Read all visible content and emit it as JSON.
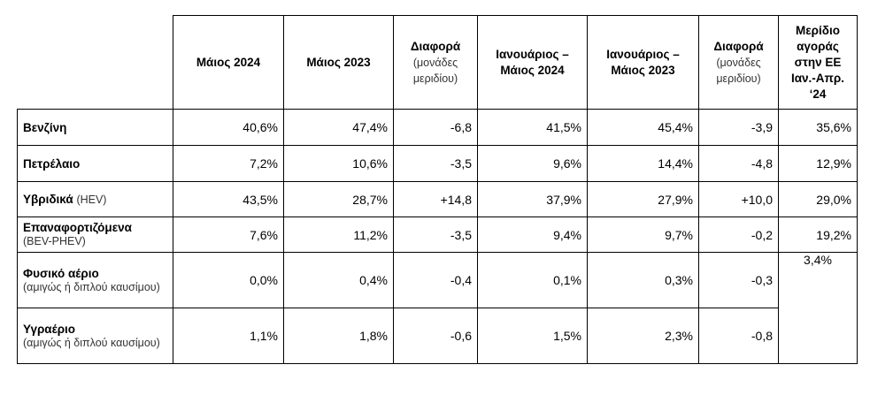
{
  "columns": [
    {
      "label": "Μάιος 2024",
      "sub": ""
    },
    {
      "label": "Μάιος 2023",
      "sub": ""
    },
    {
      "label": "Διαφορά",
      "sub": "(μονάδες μεριδίου)"
    },
    {
      "label": "Ιανουάριος – Μάιος 2024",
      "sub": ""
    },
    {
      "label": "Ιανουάριος – Μάιος 2023",
      "sub": ""
    },
    {
      "label": "Διαφορά",
      "sub": "(μονάδες μεριδίου)"
    },
    {
      "label": "Μερίδιο αγοράς στην ΕΕ Ιαν.-Απρ. ‘24",
      "sub": ""
    }
  ],
  "rows": [
    {
      "label": "Βενζίνη",
      "note": "",
      "values": [
        "40,6%",
        "47,4%",
        "-6,8",
        "41,5%",
        "45,4%",
        "-3,9",
        "35,6%"
      ]
    },
    {
      "label": "Πετρέλαιο",
      "note": "",
      "values": [
        "7,2%",
        "10,6%",
        "-3,5",
        "9,6%",
        "14,4%",
        "-4,8",
        "12,9%"
      ]
    },
    {
      "label": "Υβριδικά",
      "note": "(HEV)",
      "values": [
        "43,5%",
        "28,7%",
        "+14,8",
        "37,9%",
        "27,9%",
        "+10,0",
        "29,0%"
      ]
    },
    {
      "label": "Επαναφορτιζόμενα",
      "note": "(BEV-PHEV)",
      "values": [
        "7,6%",
        "11,2%",
        "-3,5",
        "9,4%",
        "9,7%",
        "-0,2",
        "19,2%"
      ]
    },
    {
      "label": "Φυσικό αέριο",
      "note": "(αμιγώς ή διπλού καυσίμου)",
      "values": [
        "0,0%",
        "0,4%",
        "-0,4",
        "0,1%",
        "0,3%",
        "-0,3"
      ]
    },
    {
      "label": "Υγραέριο",
      "note": "(αμιγώς ή διπλού καυσίμου)",
      "values": [
        "1,1%",
        "1,8%",
        "-0,6",
        "1,5%",
        "2,3%",
        "-0,8"
      ]
    }
  ],
  "merged_share": "3,4%"
}
